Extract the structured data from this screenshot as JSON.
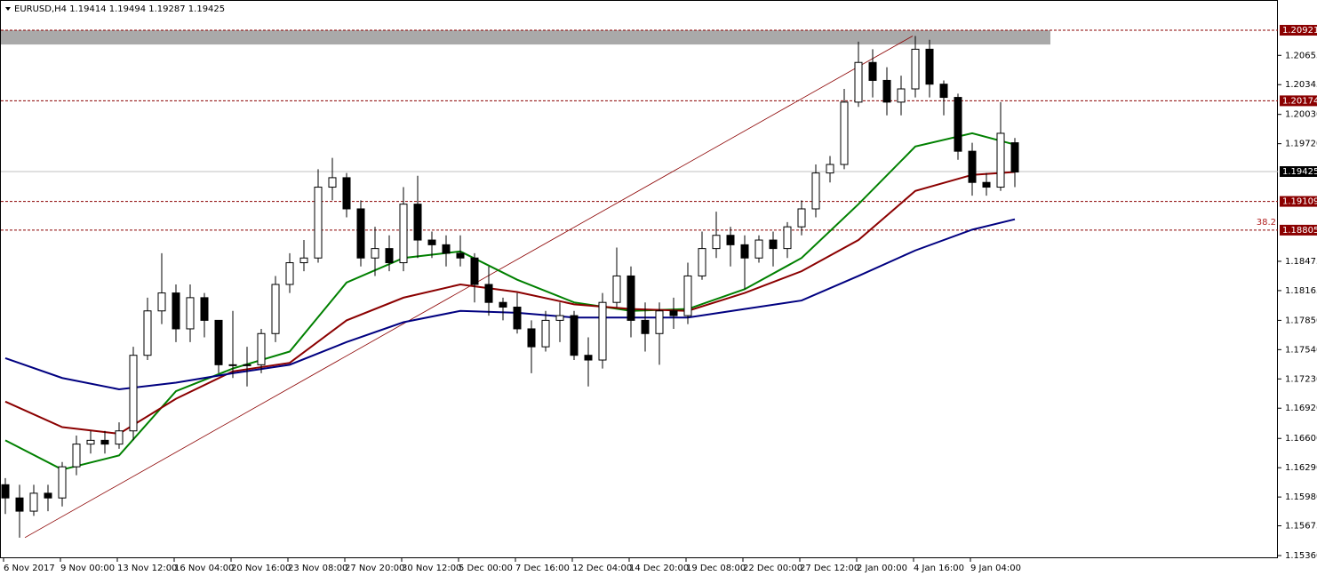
{
  "chart_data": {
    "type": "candlestick",
    "title": "EURUSD,H4  1.19414 1.19494 1.19287 1.19425",
    "ylim": [
      1.15332,
      1.21241
    ],
    "yticks": [
      1.20655,
      1.20345,
      {
        "value": 1.2003,
        "label": "1.20030"
      },
      {
        "value": 1.1972,
        "label": "1.19720"
      },
      1.18475,
      1.18165,
      {
        "value": 1.1785,
        "label": "1.17850"
      },
      {
        "value": 1.1754,
        "label": "1.17540"
      },
      {
        "value": 1.1723,
        "label": "1.17230"
      },
      {
        "value": 1.1692,
        "label": "1.16920"
      },
      {
        "value": 1.166,
        "label": "1.16600"
      },
      {
        "value": 1.1629,
        "label": "1.16290"
      },
      {
        "value": 1.1598,
        "label": "1.15980"
      },
      1.15675,
      {
        "value": 1.1536,
        "label": "1.15360"
      }
    ],
    "x_labels": [
      "6 Nov 2017",
      "9 Nov 00:00",
      "13 Nov 12:00",
      "16 Nov 04:00",
      "20 Nov 16:00",
      "23 Nov 08:00",
      "27 Nov 20:00",
      "30 Nov 12:00",
      "5 Dec 00:00",
      "7 Dec 16:00",
      "12 Dec 04:00",
      "14 Dec 20:00",
      "19 Dec 08:00",
      "22 Dec 00:00",
      "27 Dec 12:00",
      "2 Jan 00:00",
      "4 Jan 16:00",
      "9 Jan 04:00"
    ],
    "ohlc": [
      [
        1.1611,
        1.1618,
        1.158,
        1.1597
      ],
      [
        1.1597,
        1.1611,
        1.1555,
        1.1583
      ],
      [
        1.1583,
        1.1611,
        1.1578,
        1.1602
      ],
      [
        1.1602,
        1.1611,
        1.1583,
        1.1597
      ],
      [
        1.1597,
        1.1635,
        1.1588,
        1.163
      ],
      [
        1.163,
        1.1663,
        1.1621,
        1.1654
      ],
      [
        1.1654,
        1.1668,
        1.1644,
        1.1658
      ],
      [
        1.1658,
        1.1668,
        1.1644,
        1.1654
      ],
      [
        1.1654,
        1.1677,
        1.1649,
        1.1668
      ],
      [
        1.1668,
        1.1757,
        1.1658,
        1.1748
      ],
      [
        1.1748,
        1.1809,
        1.1743,
        1.1795
      ],
      [
        1.1795,
        1.1856,
        1.1781,
        1.1814
      ],
      [
        1.1814,
        1.1823,
        1.1762,
        1.1776
      ],
      [
        1.1776,
        1.1823,
        1.1762,
        1.1809
      ],
      [
        1.1809,
        1.1814,
        1.1767,
        1.1785
      ],
      [
        1.1785,
        1.1785,
        1.1729,
        1.1738
      ],
      [
        1.1738,
        1.1795,
        1.1724,
        1.1738
      ],
      [
        1.1738,
        1.1757,
        1.1715,
        1.1738
      ],
      [
        1.1738,
        1.1776,
        1.1729,
        1.1771
      ],
      [
        1.1771,
        1.1832,
        1.1762,
        1.1823
      ],
      [
        1.1823,
        1.1856,
        1.1814,
        1.1846
      ],
      [
        1.1846,
        1.187,
        1.1837,
        1.1851
      ],
      [
        1.1851,
        1.1945,
        1.1846,
        1.1926
      ],
      [
        1.1926,
        1.1957,
        1.1912,
        1.1936
      ],
      [
        1.1936,
        1.1941,
        1.1894,
        1.1903
      ],
      [
        1.1903,
        1.1912,
        1.1842,
        1.1851
      ],
      [
        1.1851,
        1.1884,
        1.1832,
        1.1861
      ],
      [
        1.1861,
        1.1875,
        1.1837,
        1.1846
      ],
      [
        1.1846,
        1.1926,
        1.1837,
        1.1908
      ],
      [
        1.1908,
        1.1938,
        1.1851,
        1.187
      ],
      [
        1.187,
        1.1879,
        1.1851,
        1.1865
      ],
      [
        1.1865,
        1.1875,
        1.1842,
        1.1856
      ],
      [
        1.1856,
        1.1875,
        1.1842,
        1.1851
      ],
      [
        1.1851,
        1.1856,
        1.1804,
        1.1823
      ],
      [
        1.1823,
        1.1842,
        1.179,
        1.1804
      ],
      [
        1.1804,
        1.1809,
        1.1785,
        1.1799
      ],
      [
        1.1799,
        1.1814,
        1.1771,
        1.1776
      ],
      [
        1.1776,
        1.1785,
        1.1729,
        1.1757
      ],
      [
        1.1757,
        1.1795,
        1.1752,
        1.1785
      ],
      [
        1.1785,
        1.1804,
        1.1762,
        1.179
      ],
      [
        1.179,
        1.1795,
        1.1743,
        1.1748
      ],
      [
        1.1748,
        1.1767,
        1.1715,
        1.1743
      ],
      [
        1.1743,
        1.1814,
        1.1734,
        1.1804
      ],
      [
        1.1804,
        1.1862,
        1.1799,
        1.1832
      ],
      [
        1.1832,
        1.1842,
        1.1767,
        1.1785
      ],
      [
        1.1785,
        1.1804,
        1.1752,
        1.1771
      ],
      [
        1.1771,
        1.1804,
        1.1738,
        1.1795
      ],
      [
        1.1795,
        1.1809,
        1.1776,
        1.179
      ],
      [
        1.179,
        1.1846,
        1.1781,
        1.1832
      ],
      [
        1.1832,
        1.1879,
        1.1828,
        1.1861
      ],
      [
        1.1861,
        1.19,
        1.1851,
        1.1875
      ],
      [
        1.1875,
        1.1884,
        1.1842,
        1.1865
      ],
      [
        1.1865,
        1.1875,
        1.1818,
        1.1851
      ],
      [
        1.1851,
        1.1875,
        1.1846,
        1.187
      ],
      [
        1.187,
        1.1879,
        1.1842,
        1.1861
      ],
      [
        1.1861,
        1.1889,
        1.1851,
        1.1884
      ],
      [
        1.1884,
        1.1912,
        1.1875,
        1.1903
      ],
      [
        1.1903,
        1.195,
        1.1894,
        1.1941
      ],
      [
        1.1941,
        1.1959,
        1.1931,
        1.195
      ],
      [
        1.195,
        1.203,
        1.1945,
        1.2016
      ],
      [
        1.2016,
        1.208,
        1.2011,
        1.2058
      ],
      [
        1.2058,
        1.2072,
        1.2021,
        1.2039
      ],
      [
        1.2039,
        1.2053,
        1.2002,
        1.2016
      ],
      [
        1.2016,
        1.2044,
        1.2002,
        1.203
      ],
      [
        1.203,
        1.2086,
        1.2021,
        1.2072
      ],
      [
        1.2072,
        1.2082,
        1.2021,
        1.2035
      ],
      [
        1.2035,
        1.2039,
        1.2002,
        1.2021
      ],
      [
        1.2021,
        1.2025,
        1.1955,
        1.1964
      ],
      [
        1.1964,
        1.1973,
        1.1917,
        1.1931
      ],
      [
        1.1931,
        1.1941,
        1.1917,
        1.1926
      ],
      [
        1.1926,
        1.2016,
        1.1922,
        1.1983
      ],
      [
        1.1973,
        1.1978,
        1.1926,
        1.1942
      ]
    ],
    "ma_x": [
      0,
      4,
      8,
      12,
      16,
      20,
      24,
      28,
      32,
      36,
      40,
      44,
      48,
      52,
      56,
      60,
      64,
      68,
      71
    ],
    "series": [
      {
        "color": "#008000",
        "values": [
          1.1658,
          1.1627,
          1.1642,
          1.171,
          1.1734,
          1.1752,
          1.1825,
          1.1851,
          1.1858,
          1.1828,
          1.1804,
          1.1795,
          1.1797,
          1.1818,
          1.1851,
          1.1908,
          1.1969,
          1.1983,
          1.1971
        ]
      },
      {
        "color": "#8b0000",
        "values": [
          1.1699,
          1.1672,
          1.1665,
          1.1702,
          1.1731,
          1.174,
          1.1785,
          1.1809,
          1.1823,
          1.1815,
          1.1802,
          1.1797,
          1.1795,
          1.1814,
          1.1837,
          1.187,
          1.1922,
          1.1939,
          1.1942
        ]
      },
      {
        "color": "#000080",
        "values": [
          1.1745,
          1.1724,
          1.1712,
          1.1719,
          1.1729,
          1.1738,
          1.1762,
          1.1783,
          1.1795,
          1.1793,
          1.1788,
          1.1788,
          1.1788,
          1.1797,
          1.1806,
          1.1832,
          1.1859,
          1.1881,
          1.1892
        ]
      }
    ],
    "trendline": [
      1.1555,
      1.2086
    ],
    "zone": [
      1.2077,
      1.2092
    ],
    "levels": [
      {
        "value": 1.20921,
        "color": "#8b0000",
        "dash": true
      },
      {
        "value": 1.20174,
        "color": "#8b0000",
        "dash": true
      },
      {
        "value": 1.19425,
        "color": "#000000",
        "dash": false
      },
      {
        "value": 1.19109,
        "color": "#8b0000",
        "dash": true
      },
      {
        "value": 1.18805,
        "color": "#8b0000",
        "dash": true
      }
    ],
    "fib_label": "38.2"
  }
}
